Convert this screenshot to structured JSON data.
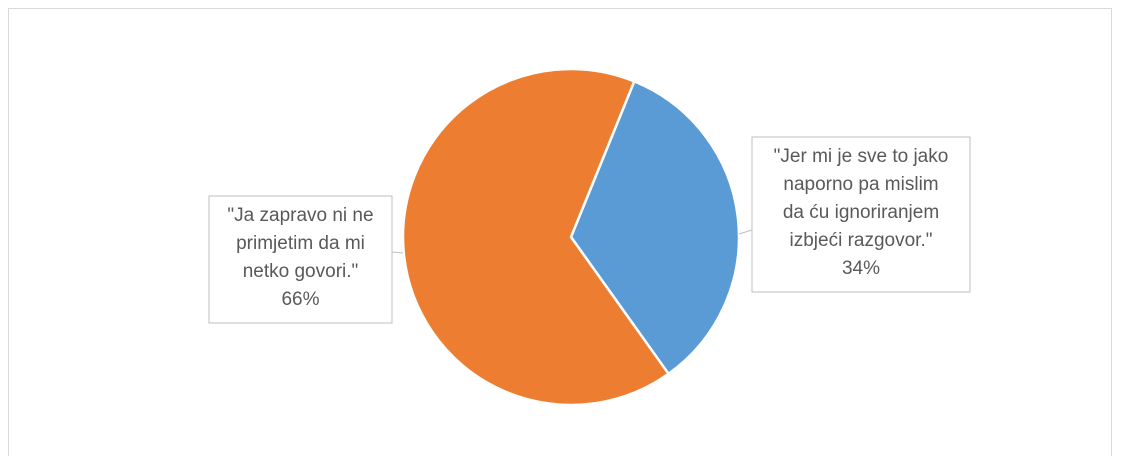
{
  "chart_data": {
    "type": "pie",
    "title": "",
    "categories": [
      "\"Jer mi je sve to jako naporno pa mislim da ću ignoriranjem izbjeći razgovor.\"",
      "\"Ja zapravo ni ne primjetim da mi netko govori.\""
    ],
    "values": [
      34,
      66
    ],
    "colors": [
      "#5b9bd5",
      "#ed7d31"
    ],
    "data_labels": [
      {
        "lines": [
          "\"Jer mi je sve to jako",
          "naporno pa mislim",
          "da ću ignoriranjem",
          "izbjeći razgovor.\"",
          "34%"
        ]
      },
      {
        "lines": [
          "\"Ja zapravo ni ne",
          "primjetim da mi",
          "netko govori.\"",
          "66%"
        ]
      }
    ],
    "legend": "none",
    "grid": false
  }
}
